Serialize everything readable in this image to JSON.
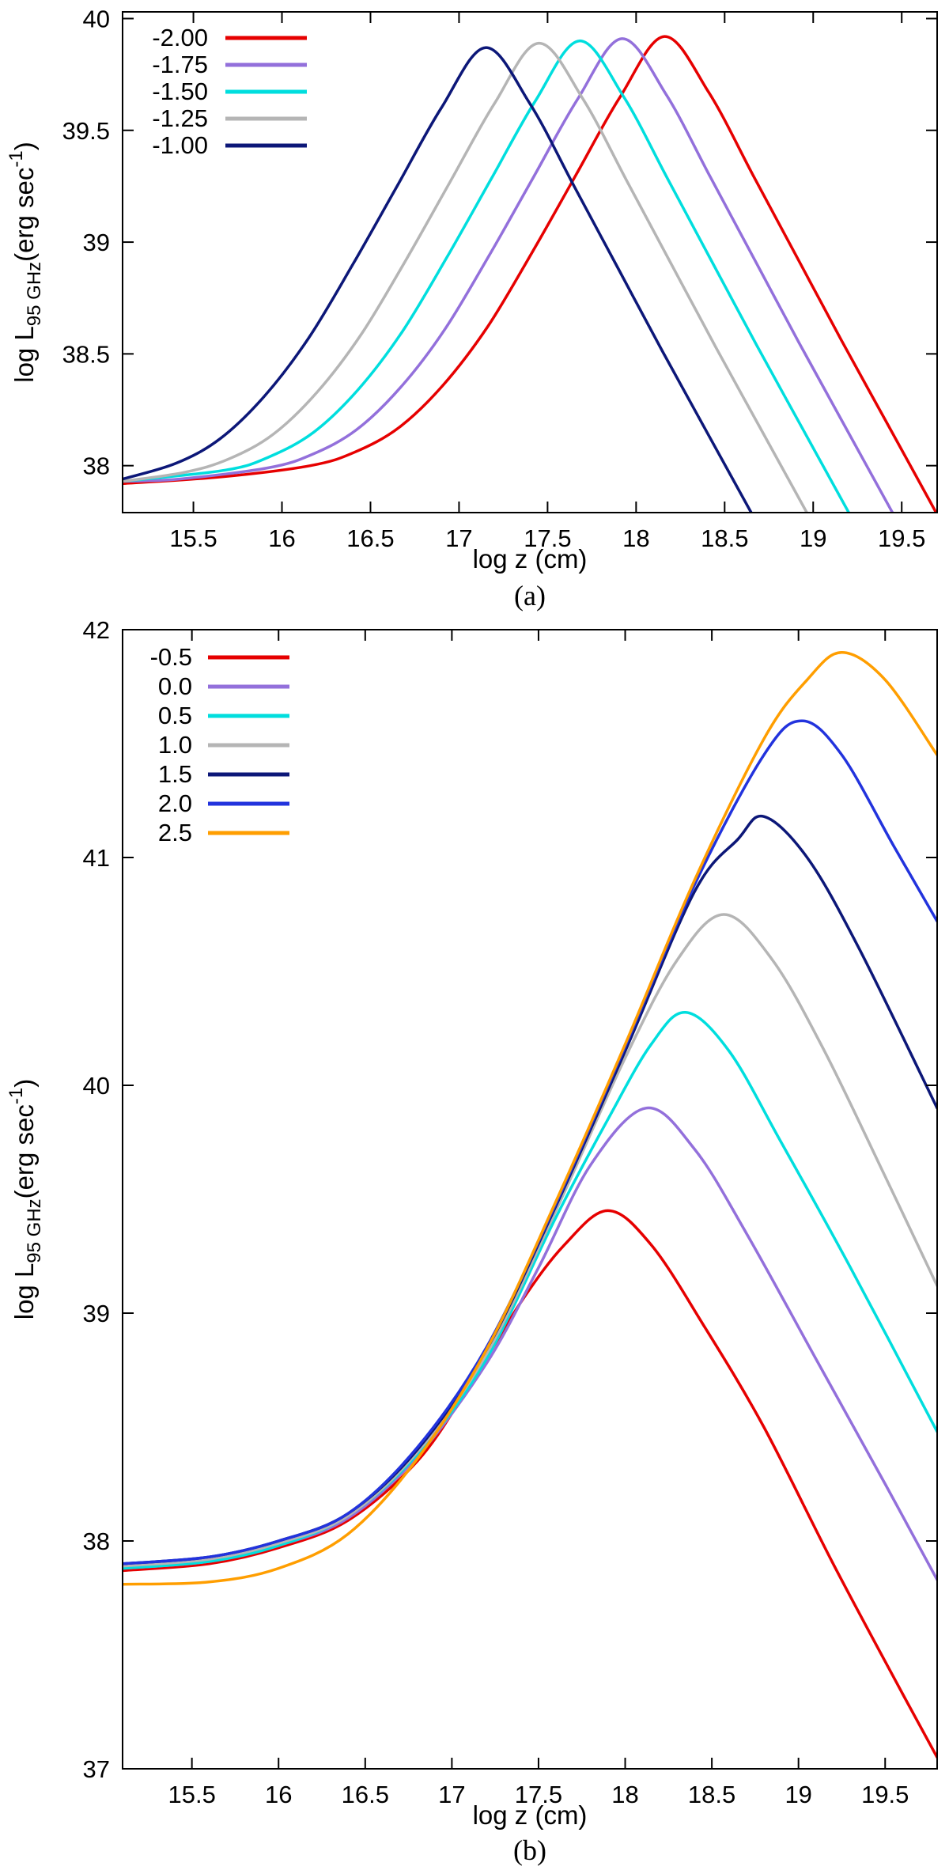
{
  "page": {
    "background": "#ffffff",
    "caption_a": "(a)",
    "caption_b": "(b)"
  },
  "chart_data": [
    {
      "type": "line",
      "caption": "(a)",
      "title": "",
      "xlabel": "log z (cm)",
      "ylabel": "log L_95 GHz (erg sec^-1)",
      "ylabel_parts": [
        {
          "t": "log L"
        },
        {
          "t": "95 GHz",
          "sub": true
        },
        {
          "t": "(erg sec"
        },
        {
          "t": "-1",
          "sup": true
        },
        {
          "t": ")"
        }
      ],
      "xlim": [
        15.1,
        19.7
      ],
      "ylim": [
        37.79,
        40.03
      ],
      "grid": false,
      "legend_position": "top-left",
      "xticks": {
        "values": [
          15.5,
          16,
          16.5,
          17,
          17.5,
          18,
          18.5,
          19,
          19.5
        ],
        "labels": [
          "15.5",
          "16",
          "16.5",
          "17",
          "17.5",
          "18",
          "18.5",
          "19",
          "19.5"
        ]
      },
      "yticks": {
        "values": [
          38,
          38.5,
          39,
          39.5,
          40
        ],
        "labels": [
          "38",
          "38.5",
          "39",
          "39.5",
          "40"
        ]
      },
      "series": [
        {
          "name": "-2.00",
          "color": "#e60000",
          "points": [
            [
              15.1,
              37.92
            ],
            [
              15.66,
              37.95
            ],
            [
              16.16,
              38.0
            ],
            [
              16.41,
              38.06
            ],
            [
              16.66,
              38.17
            ],
            [
              16.91,
              38.36
            ],
            [
              17.16,
              38.62
            ],
            [
              17.41,
              38.95
            ],
            [
              17.66,
              39.3
            ],
            [
              17.91,
              39.65
            ],
            [
              18.16,
              39.92
            ],
            [
              18.41,
              39.67
            ],
            [
              18.66,
              39.3
            ],
            [
              18.91,
              38.93
            ],
            [
              19.16,
              38.56
            ],
            [
              19.41,
              38.2
            ],
            [
              19.66,
              37.84
            ],
            [
              19.7,
              37.78
            ]
          ]
        },
        {
          "name": "-1.75",
          "color": "#9370db",
          "points": [
            [
              15.1,
              37.93
            ],
            [
              15.42,
              37.94
            ],
            [
              15.92,
              37.99
            ],
            [
              16.17,
              38.05
            ],
            [
              16.42,
              38.16
            ],
            [
              16.67,
              38.35
            ],
            [
              16.92,
              38.61
            ],
            [
              17.17,
              38.94
            ],
            [
              17.42,
              39.29
            ],
            [
              17.67,
              39.64
            ],
            [
              17.92,
              39.91
            ],
            [
              18.17,
              39.66
            ],
            [
              18.42,
              39.29
            ],
            [
              18.67,
              38.92
            ],
            [
              18.92,
              38.55
            ],
            [
              19.17,
              38.19
            ],
            [
              19.42,
              37.83
            ],
            [
              19.67,
              37.47
            ]
          ]
        },
        {
          "name": "-1.50",
          "color": "#00dede",
          "points": [
            [
              15.1,
              37.93
            ],
            [
              15.68,
              37.98
            ],
            [
              15.93,
              38.04
            ],
            [
              16.18,
              38.15
            ],
            [
              16.43,
              38.34
            ],
            [
              16.68,
              38.6
            ],
            [
              16.93,
              38.93
            ],
            [
              17.18,
              39.28
            ],
            [
              17.43,
              39.63
            ],
            [
              17.68,
              39.9
            ],
            [
              17.93,
              39.65
            ],
            [
              18.18,
              39.28
            ],
            [
              18.43,
              38.91
            ],
            [
              18.68,
              38.54
            ],
            [
              18.93,
              38.18
            ],
            [
              19.18,
              37.82
            ],
            [
              19.43,
              37.46
            ]
          ]
        },
        {
          "name": "-1.25",
          "color": "#b5b5b5",
          "points": [
            [
              15.1,
              37.93
            ],
            [
              15.45,
              37.97
            ],
            [
              15.7,
              38.03
            ],
            [
              15.95,
              38.14
            ],
            [
              16.2,
              38.33
            ],
            [
              16.45,
              38.59
            ],
            [
              16.7,
              38.92
            ],
            [
              16.95,
              39.27
            ],
            [
              17.2,
              39.62
            ],
            [
              17.45,
              39.89
            ],
            [
              17.7,
              39.64
            ],
            [
              17.95,
              39.27
            ],
            [
              18.2,
              38.9
            ],
            [
              18.45,
              38.53
            ],
            [
              18.7,
              38.17
            ],
            [
              18.95,
              37.81
            ],
            [
              19.2,
              37.45
            ]
          ]
        },
        {
          "name": "-1.00",
          "color": "#0c1778",
          "points": [
            [
              15.1,
              37.94
            ],
            [
              15.4,
              38.01
            ],
            [
              15.65,
              38.12
            ],
            [
              15.9,
              38.31
            ],
            [
              16.15,
              38.57
            ],
            [
              16.4,
              38.9
            ],
            [
              16.65,
              39.25
            ],
            [
              16.9,
              39.6
            ],
            [
              17.15,
              39.87
            ],
            [
              17.4,
              39.62
            ],
            [
              17.65,
              39.25
            ],
            [
              17.9,
              38.88
            ],
            [
              18.15,
              38.51
            ],
            [
              18.4,
              38.15
            ],
            [
              18.65,
              37.79
            ],
            [
              18.9,
              37.43
            ]
          ]
        }
      ]
    },
    {
      "type": "line",
      "caption": "(b)",
      "title": "",
      "xlabel": "log z (cm)",
      "ylabel": "log L_95 GHz (erg sec^-1)",
      "ylabel_parts": [
        {
          "t": "log L"
        },
        {
          "t": "95 GHz",
          "sub": true
        },
        {
          "t": "(erg sec"
        },
        {
          "t": "-1",
          "sup": true
        },
        {
          "t": ")"
        }
      ],
      "xlim": [
        15.1,
        19.8
      ],
      "ylim": [
        37,
        42
      ],
      "grid": false,
      "legend_position": "top-left",
      "xticks": {
        "values": [
          15.5,
          16,
          16.5,
          17,
          17.5,
          18,
          18.5,
          19,
          19.5
        ],
        "labels": [
          "15.5",
          "16",
          "16.5",
          "17",
          "17.5",
          "18",
          "18.5",
          "19",
          "19.5"
        ]
      },
      "yticks": {
        "values": [
          37,
          38,
          39,
          40,
          41,
          42
        ],
        "labels": [
          "37",
          "38",
          "39",
          "40",
          "41",
          "42"
        ]
      },
      "series": [
        {
          "name": "-0.5",
          "color": "#e60000",
          "points": [
            [
              15.1,
              37.87
            ],
            [
              15.6,
              37.9
            ],
            [
              16,
              37.97
            ],
            [
              16.4,
              38.09
            ],
            [
              16.8,
              38.35
            ],
            [
              17.1,
              38.68
            ],
            [
              17.4,
              39.05
            ],
            [
              17.65,
              39.3
            ],
            [
              17.9,
              39.45
            ],
            [
              18.15,
              39.3
            ],
            [
              18.45,
              38.95
            ],
            [
              18.8,
              38.5
            ],
            [
              19.2,
              37.9
            ],
            [
              19.6,
              37.33
            ],
            [
              19.8,
              37.05
            ]
          ]
        },
        {
          "name": "0.0",
          "color": "#9370db",
          "points": [
            [
              15.1,
              37.88
            ],
            [
              15.6,
              37.91
            ],
            [
              16,
              37.98
            ],
            [
              16.4,
              38.1
            ],
            [
              16.8,
              38.37
            ],
            [
              17.2,
              38.78
            ],
            [
              17.5,
              39.2
            ],
            [
              17.8,
              39.65
            ],
            [
              18.12,
              39.9
            ],
            [
              18.4,
              39.72
            ],
            [
              18.7,
              39.35
            ],
            [
              19.1,
              38.8
            ],
            [
              19.5,
              38.25
            ],
            [
              19.8,
              37.83
            ]
          ]
        },
        {
          "name": "0.5",
          "color": "#00dede",
          "points": [
            [
              15.1,
              37.88
            ],
            [
              15.6,
              37.91
            ],
            [
              16,
              37.98
            ],
            [
              16.4,
              38.11
            ],
            [
              16.8,
              38.38
            ],
            [
              17.2,
              38.8
            ],
            [
              17.6,
              39.42
            ],
            [
              17.9,
              39.85
            ],
            [
              18.15,
              40.18
            ],
            [
              18.35,
              40.32
            ],
            [
              18.6,
              40.15
            ],
            [
              18.9,
              39.75
            ],
            [
              19.3,
              39.2
            ],
            [
              19.8,
              38.48
            ]
          ]
        },
        {
          "name": "1.0",
          "color": "#b5b5b5",
          "points": [
            [
              15.1,
              37.89
            ],
            [
              15.6,
              37.92
            ],
            [
              16,
              37.99
            ],
            [
              16.4,
              38.11
            ],
            [
              16.8,
              38.39
            ],
            [
              17.2,
              38.82
            ],
            [
              17.6,
              39.45
            ],
            [
              18,
              40.12
            ],
            [
              18.3,
              40.55
            ],
            [
              18.57,
              40.75
            ],
            [
              18.85,
              40.55
            ],
            [
              19.15,
              40.15
            ],
            [
              19.5,
              39.6
            ],
            [
              19.8,
              39.12
            ]
          ]
        },
        {
          "name": "1.5",
          "color": "#0c1778",
          "points": [
            [
              15.1,
              37.9
            ],
            [
              15.6,
              37.93
            ],
            [
              16,
              38
            ],
            [
              16.4,
              38.12
            ],
            [
              16.8,
              38.4
            ],
            [
              17.2,
              38.84
            ],
            [
              17.6,
              39.47
            ],
            [
              18,
              40.15
            ],
            [
              18.4,
              40.85
            ],
            [
              18.65,
              41.08
            ],
            [
              18.8,
              41.18
            ],
            [
              19.05,
              41
            ],
            [
              19.35,
              40.6
            ],
            [
              19.8,
              39.9
            ]
          ]
        },
        {
          "name": "2.0",
          "color": "#2233dd",
          "points": [
            [
              15.1,
              37.9
            ],
            [
              15.6,
              37.93
            ],
            [
              16,
              38
            ],
            [
              16.4,
              38.12
            ],
            [
              16.8,
              38.41
            ],
            [
              17.2,
              38.85
            ],
            [
              17.6,
              39.48
            ],
            [
              18,
              40.17
            ],
            [
              18.4,
              40.88
            ],
            [
              18.8,
              41.45
            ],
            [
              19.02,
              41.6
            ],
            [
              19.25,
              41.45
            ],
            [
              19.55,
              41.05
            ],
            [
              19.8,
              40.72
            ]
          ]
        },
        {
          "name": "2.5",
          "color": "#ff9e00",
          "points": [
            [
              15.1,
              37.81
            ],
            [
              15.6,
              37.82
            ],
            [
              16,
              37.88
            ],
            [
              16.4,
              38.03
            ],
            [
              16.8,
              38.36
            ],
            [
              17.2,
              38.84
            ],
            [
              17.6,
              39.49
            ],
            [
              18,
              40.18
            ],
            [
              18.4,
              40.9
            ],
            [
              18.8,
              41.52
            ],
            [
              19.05,
              41.78
            ],
            [
              19.25,
              41.9
            ],
            [
              19.5,
              41.78
            ],
            [
              19.8,
              41.45
            ]
          ]
        }
      ]
    }
  ]
}
